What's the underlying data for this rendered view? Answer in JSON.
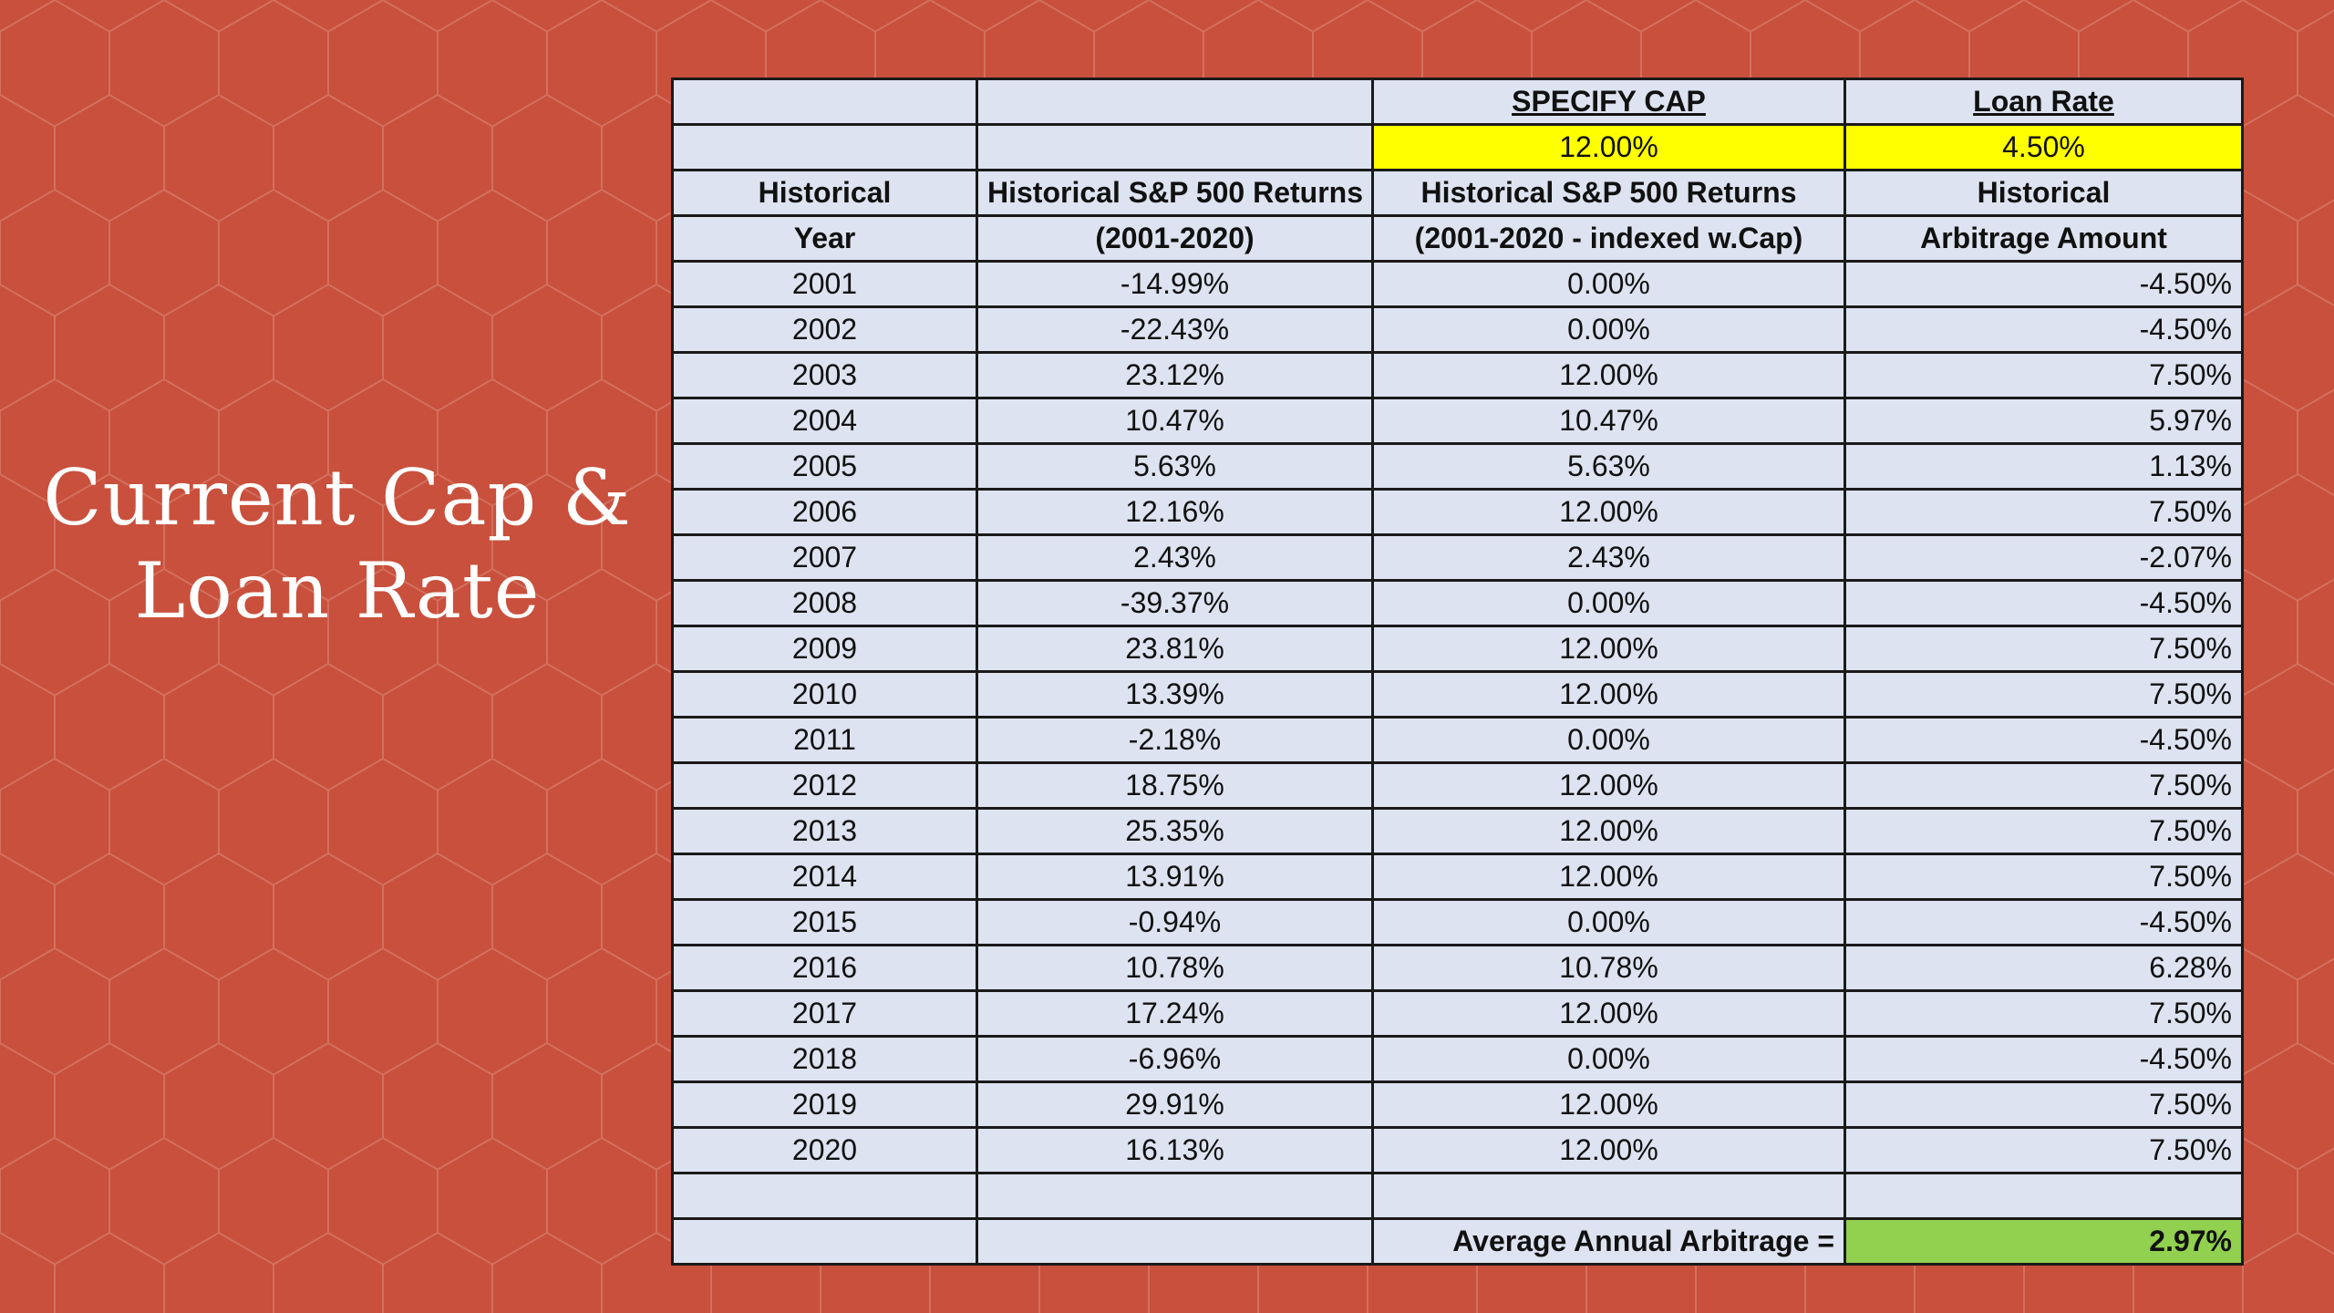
{
  "slide": {
    "title_line1": "Current Cap &",
    "title_line2": "Loan Rate"
  },
  "table": {
    "header_row1": {
      "col3": "SPECIFY CAP",
      "col4": "Loan Rate"
    },
    "header_row2": {
      "cap_value": "12.00%",
      "loan_rate_value": "4.50%"
    },
    "header_row3": {
      "col1": "Historical",
      "col2": "Historical S&P 500 Returns",
      "col3": "Historical S&P 500 Returns",
      "col4": "Historical"
    },
    "header_row4": {
      "col1": "Year",
      "col2": "(2001-2020)",
      "col3": "(2001-2020 - indexed w.Cap)",
      "col4": "Arbitrage Amount"
    },
    "rows": [
      {
        "year": "2001",
        "sp_return": "-14.99%",
        "indexed": "0.00%",
        "arbitrage": "-4.50%"
      },
      {
        "year": "2002",
        "sp_return": "-22.43%",
        "indexed": "0.00%",
        "arbitrage": "-4.50%"
      },
      {
        "year": "2003",
        "sp_return": "23.12%",
        "indexed": "12.00%",
        "arbitrage": "7.50%"
      },
      {
        "year": "2004",
        "sp_return": "10.47%",
        "indexed": "10.47%",
        "arbitrage": "5.97%"
      },
      {
        "year": "2005",
        "sp_return": "5.63%",
        "indexed": "5.63%",
        "arbitrage": "1.13%"
      },
      {
        "year": "2006",
        "sp_return": "12.16%",
        "indexed": "12.00%",
        "arbitrage": "7.50%"
      },
      {
        "year": "2007",
        "sp_return": "2.43%",
        "indexed": "2.43%",
        "arbitrage": "-2.07%"
      },
      {
        "year": "2008",
        "sp_return": "-39.37%",
        "indexed": "0.00%",
        "arbitrage": "-4.50%"
      },
      {
        "year": "2009",
        "sp_return": "23.81%",
        "indexed": "12.00%",
        "arbitrage": "7.50%"
      },
      {
        "year": "2010",
        "sp_return": "13.39%",
        "indexed": "12.00%",
        "arbitrage": "7.50%"
      },
      {
        "year": "2011",
        "sp_return": "-2.18%",
        "indexed": "0.00%",
        "arbitrage": "-4.50%"
      },
      {
        "year": "2012",
        "sp_return": "18.75%",
        "indexed": "12.00%",
        "arbitrage": "7.50%"
      },
      {
        "year": "2013",
        "sp_return": "25.35%",
        "indexed": "12.00%",
        "arbitrage": "7.50%"
      },
      {
        "year": "2014",
        "sp_return": "13.91%",
        "indexed": "12.00%",
        "arbitrage": "7.50%"
      },
      {
        "year": "2015",
        "sp_return": "-0.94%",
        "indexed": "0.00%",
        "arbitrage": "-4.50%"
      },
      {
        "year": "2016",
        "sp_return": "10.78%",
        "indexed": "10.78%",
        "arbitrage": "6.28%"
      },
      {
        "year": "2017",
        "sp_return": "17.24%",
        "indexed": "12.00%",
        "arbitrage": "7.50%"
      },
      {
        "year": "2018",
        "sp_return": "-6.96%",
        "indexed": "0.00%",
        "arbitrage": "-4.50%"
      },
      {
        "year": "2019",
        "sp_return": "29.91%",
        "indexed": "12.00%",
        "arbitrage": "7.50%"
      },
      {
        "year": "2020",
        "sp_return": "16.13%",
        "indexed": "12.00%",
        "arbitrage": "7.50%"
      }
    ],
    "footer": {
      "avg_label": "Average Annual Arbitrage =",
      "avg_value": "2.97%"
    }
  },
  "colors": {
    "background": "#c9503c",
    "table_fill": "#dde3f0",
    "input_highlight": "#ffff00",
    "result_highlight": "#92d050"
  }
}
